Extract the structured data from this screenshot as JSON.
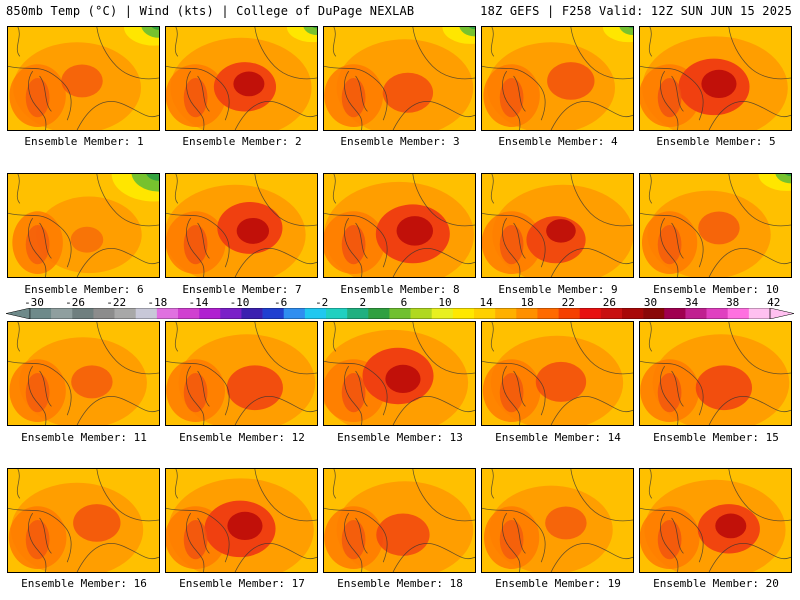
{
  "header": {
    "left": "850mb Temp (°C) | Wind (kts) | College of DuPage NEXLAB",
    "right": "18Z GEFS | F258 Valid: 12Z SUN JUN 15 2025"
  },
  "panel_label_prefix": "Ensemble Member: ",
  "members": [
    {
      "label": "Ensemble Member: 1",
      "warm": 0.55,
      "hot": 0.2,
      "cool_corner": 0.5
    },
    {
      "label": "Ensemble Member: 2",
      "warm": 0.7,
      "hot": 0.55,
      "cool_corner": 0.3
    },
    {
      "label": "Ensemble Member: 3",
      "warm": 0.65,
      "hot": 0.35,
      "cool_corner": 0.4
    },
    {
      "label": "Ensemble Member: 4",
      "warm": 0.55,
      "hot": 0.3,
      "cool_corner": 0.3
    },
    {
      "label": "Ensemble Member: 5",
      "warm": 0.75,
      "hot": 0.7,
      "cool_corner": 0.0
    },
    {
      "label": "Ensemble Member: 6",
      "warm": 0.3,
      "hot": 0.05,
      "cool_corner": 1.0
    },
    {
      "label": "Ensemble Member: 7",
      "warm": 0.7,
      "hot": 0.6,
      "cool_corner": 0.0
    },
    {
      "label": "Ensemble Member: 8",
      "warm": 0.8,
      "hot": 0.75,
      "cool_corner": 0.0
    },
    {
      "label": "Ensemble Member: 9",
      "warm": 0.7,
      "hot": 0.5,
      "cool_corner": 0.0
    },
    {
      "label": "Ensemble Member: 10",
      "warm": 0.5,
      "hot": 0.2,
      "cool_corner": 0.4
    },
    {
      "label": "Ensemble Member: 11",
      "warm": 0.55,
      "hot": 0.2,
      "cool_corner": 0.0
    },
    {
      "label": "Ensemble Member: 12",
      "warm": 0.65,
      "hot": 0.45,
      "cool_corner": 0.0
    },
    {
      "label": "Ensemble Member: 13",
      "warm": 0.8,
      "hot": 0.7,
      "cool_corner": 0.0
    },
    {
      "label": "Ensemble Member: 14",
      "warm": 0.6,
      "hot": 0.35,
      "cool_corner": 0.0
    },
    {
      "label": "Ensemble Member: 15",
      "warm": 0.65,
      "hot": 0.45,
      "cool_corner": 0.0
    },
    {
      "label": "Ensemble Member: 16",
      "warm": 0.6,
      "hot": 0.3,
      "cool_corner": 0.0
    },
    {
      "label": "Ensemble Member: 17",
      "warm": 0.75,
      "hot": 0.7,
      "cool_corner": 0.0
    },
    {
      "label": "Ensemble Member: 18",
      "warm": 0.65,
      "hot": 0.4,
      "cool_corner": 0.0
    },
    {
      "label": "Ensemble Member: 19",
      "warm": 0.5,
      "hot": 0.2,
      "cool_corner": 0.0
    },
    {
      "label": "Ensemble Member: 20",
      "warm": 0.7,
      "hot": 0.55,
      "cool_corner": 0.0
    }
  ],
  "colorbar": {
    "tick_labels": [
      "-30",
      "-26",
      "-22",
      "-18",
      "-14",
      "-10",
      "-6",
      "-2",
      "2",
      "6",
      "10",
      "14",
      "18",
      "22",
      "26",
      "30",
      "34",
      "38",
      "42"
    ],
    "colors": [
      "#6e8a8a",
      "#8f9f9f",
      "#6f7f7f",
      "#8c8c8c",
      "#a8a8a8",
      "#c8c8d8",
      "#e070e0",
      "#d040d0",
      "#b020d0",
      "#7a20c8",
      "#3b20b0",
      "#2040d0",
      "#2f8ef0",
      "#20c8f0",
      "#20d0c0",
      "#20b080",
      "#30a040",
      "#70c030",
      "#b0d820",
      "#e8f020",
      "#ffe800",
      "#ffd000",
      "#ffb000",
      "#ff9000",
      "#ff6a00",
      "#f54000",
      "#e81010",
      "#c81010",
      "#a80808",
      "#8a0808",
      "#a00050",
      "#c02090",
      "#e040c0",
      "#ff70e0",
      "#ffc0f0"
    ]
  }
}
